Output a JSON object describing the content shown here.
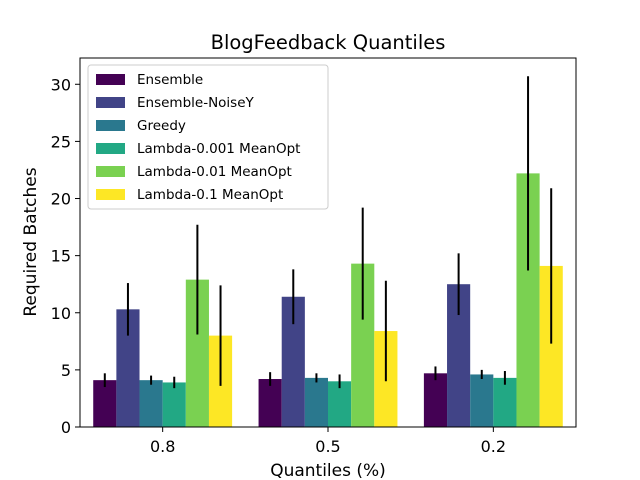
{
  "chart_data": {
    "type": "bar",
    "title": "BlogFeedback Quantiles",
    "xlabel": "Quantiles (%)",
    "ylabel": "Required Batches",
    "categories": [
      "0.8",
      "0.5",
      "0.2"
    ],
    "ylim": [
      0,
      32.3
    ],
    "yticks": [
      0,
      5,
      10,
      15,
      20,
      25,
      30
    ],
    "legend_position": "top-left",
    "series": [
      {
        "name": "Ensemble",
        "color": "#440154",
        "values": [
          4.1,
          4.2,
          4.7
        ],
        "errors": [
          0.6,
          0.6,
          0.6
        ]
      },
      {
        "name": "Ensemble-NoiseY",
        "color": "#414487",
        "values": [
          10.3,
          11.4,
          12.5
        ],
        "errors": [
          2.3,
          2.4,
          2.7
        ]
      },
      {
        "name": "Greedy",
        "color": "#2a788e",
        "values": [
          4.1,
          4.3,
          4.6
        ],
        "errors": [
          0.4,
          0.4,
          0.4
        ]
      },
      {
        "name": "Lambda-0.001 MeanOpt",
        "color": "#22a884",
        "values": [
          3.9,
          4.0,
          4.3
        ],
        "errors": [
          0.5,
          0.6,
          0.6
        ]
      },
      {
        "name": "Lambda-0.01 MeanOpt",
        "color": "#7ad151",
        "values": [
          12.9,
          14.3,
          22.2
        ],
        "errors": [
          4.8,
          4.9,
          8.5
        ]
      },
      {
        "name": "Lambda-0.1 MeanOpt",
        "color": "#fde725",
        "values": [
          8.0,
          8.4,
          14.1
        ],
        "errors": [
          4.4,
          4.4,
          6.8
        ]
      }
    ]
  }
}
